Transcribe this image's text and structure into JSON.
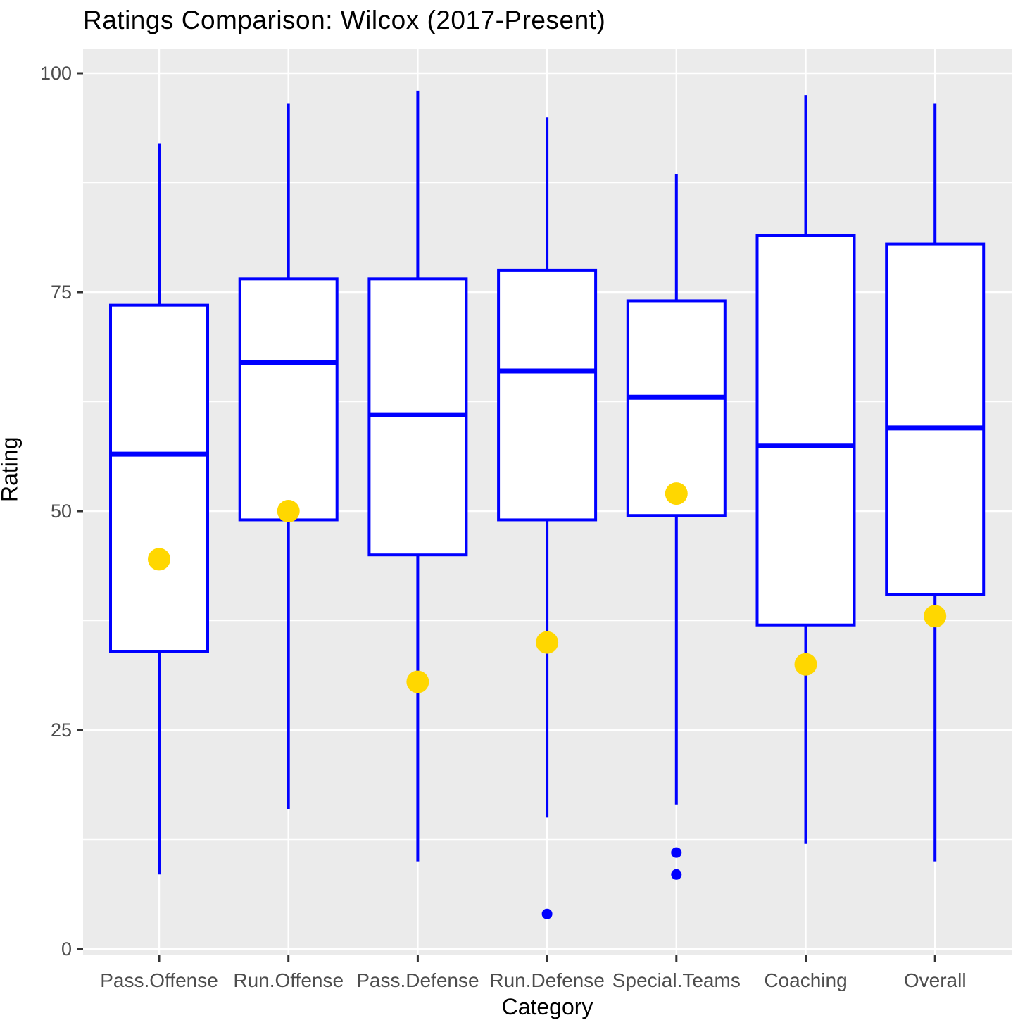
{
  "chart_data": {
    "type": "boxplot",
    "title": "Ratings Comparison: Wilcox (2017-Present)",
    "xlabel": "Category",
    "ylabel": "Rating",
    "ylim": [
      0,
      100
    ],
    "yticks": [
      0,
      25,
      50,
      75,
      100
    ],
    "minor_gridlines": [
      12.5,
      37.5,
      62.5,
      87.5
    ],
    "grid": "on",
    "legend_position": "none",
    "categories": [
      "Pass.Offense",
      "Run.Offense",
      "Pass.Defense",
      "Run.Defense",
      "Special.Teams",
      "Coaching",
      "Overall"
    ],
    "series": [
      {
        "category": "Pass.Offense",
        "whisker_low": 8.5,
        "q1": 34,
        "median": 56.5,
        "q3": 73.5,
        "whisker_high": 92,
        "outliers": [],
        "highlight_point": 44.5
      },
      {
        "category": "Run.Offense",
        "whisker_low": 16,
        "q1": 49,
        "median": 67,
        "q3": 76.5,
        "whisker_high": 96.5,
        "outliers": [],
        "highlight_point": 50
      },
      {
        "category": "Pass.Defense",
        "whisker_low": 10,
        "q1": 45,
        "median": 61,
        "q3": 76.5,
        "whisker_high": 98,
        "outliers": [],
        "highlight_point": 30.5
      },
      {
        "category": "Run.Defense",
        "whisker_low": 15,
        "q1": 49,
        "median": 66,
        "q3": 77.5,
        "whisker_high": 95,
        "outliers": [
          4
        ],
        "highlight_point": 35
      },
      {
        "category": "Special.Teams",
        "whisker_low": 16.5,
        "q1": 49.5,
        "median": 63,
        "q3": 74,
        "whisker_high": 88.5,
        "outliers": [
          11,
          8.5
        ],
        "highlight_point": 52
      },
      {
        "category": "Coaching",
        "whisker_low": 12,
        "q1": 37,
        "median": 57.5,
        "q3": 81.5,
        "whisker_high": 97.5,
        "outliers": [],
        "highlight_point": 32.5
      },
      {
        "category": "Overall",
        "whisker_low": 10,
        "q1": 40.5,
        "median": 59.5,
        "q3": 80.5,
        "whisker_high": 96.5,
        "outliers": [],
        "highlight_point": 38
      }
    ],
    "colors": {
      "box_stroke": "#0000FF",
      "box_fill": "#FFFFFF",
      "highlight_point": "#FFD700",
      "outlier": "#0000FF",
      "panel_background": "#EBEBEB",
      "gridline": "#FFFFFF",
      "tick_label": "#4D4D4D",
      "axis_tick": "#333333",
      "title_text": "#000000"
    }
  }
}
